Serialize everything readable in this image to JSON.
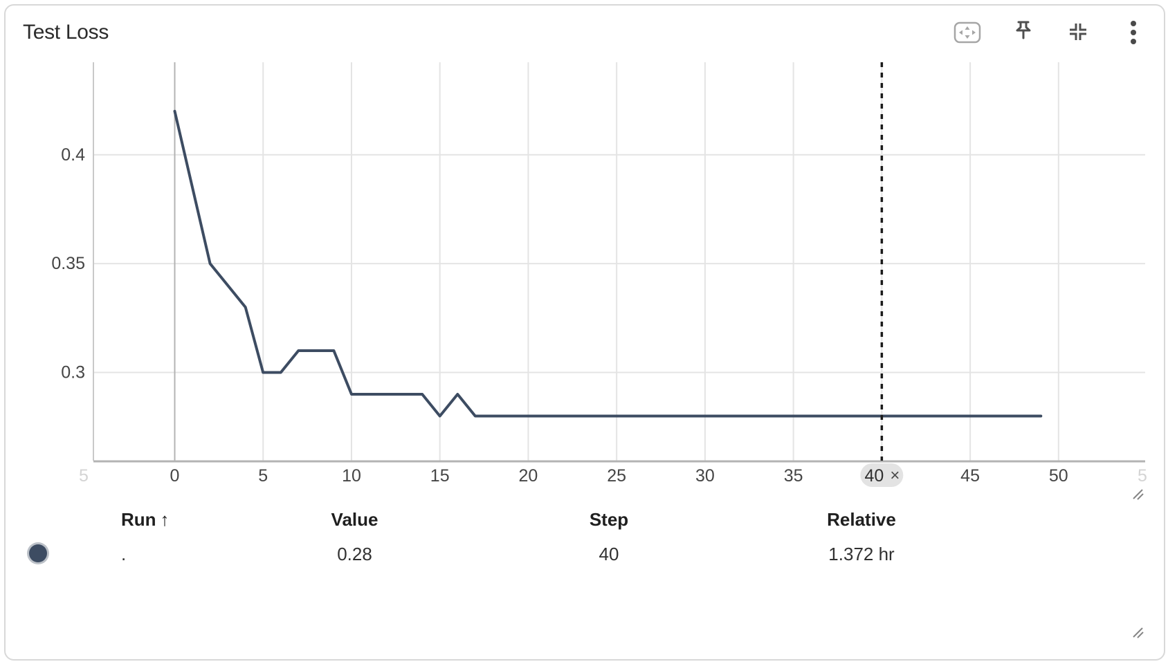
{
  "panel": {
    "title": "Test Loss",
    "toolbar_icons": [
      "fit-to-data-icon",
      "pin-icon",
      "collapse-panel-icon",
      "kebab-menu-icon"
    ]
  },
  "chart_data": {
    "type": "line",
    "title": "Test Loss",
    "xlabel": "",
    "ylabel": "",
    "series": [
      {
        "name": ".",
        "color": "#3d4c62",
        "points": [
          [
            0,
            0.42
          ],
          [
            2,
            0.35
          ],
          [
            3,
            0.34
          ],
          [
            4,
            0.33
          ],
          [
            5,
            0.3
          ],
          [
            6,
            0.3
          ],
          [
            7,
            0.31
          ],
          [
            9,
            0.31
          ],
          [
            10,
            0.29
          ],
          [
            14,
            0.29
          ],
          [
            15,
            0.28
          ],
          [
            16,
            0.29
          ],
          [
            17,
            0.28
          ],
          [
            49,
            0.28
          ]
        ]
      }
    ],
    "x_ticks": [
      0,
      5,
      10,
      15,
      20,
      25,
      30,
      35,
      40,
      45,
      50
    ],
    "y_ticks": [
      0.3,
      0.35,
      0.4
    ],
    "xlim": [
      -4.6,
      54.9
    ],
    "ylim": [
      0.2595,
      0.4425
    ],
    "grid": true,
    "legend_position": "bottom-table",
    "clipped_edge_tick_labels": {
      "left": "5",
      "right": "5"
    },
    "crosshair": {
      "step": 40,
      "label": "40",
      "close_label": "×",
      "line_color": "#1b1b1b",
      "pill_bg": "#e3e3e3"
    }
  },
  "table": {
    "columns": [
      "Run",
      "Value",
      "Step",
      "Relative"
    ],
    "sort": {
      "column": "Run",
      "direction_icon": "↑"
    },
    "rows": [
      {
        "dot_color": "#3d4c62",
        "run": ".",
        "value": "0.28",
        "step": "40",
        "relative": "1.372 hr"
      }
    ]
  }
}
